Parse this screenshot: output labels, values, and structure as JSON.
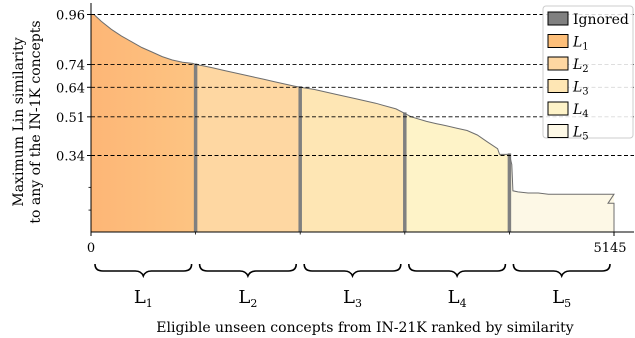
{
  "chart_data": {
    "type": "area",
    "ylabel_lines": [
      "Maximum Lin similarity",
      "to any of the IN-1K concepts"
    ],
    "xlabel": "Eligible unseen concepts from IN-21K ranked by similarity",
    "x_ticks": [
      0,
      5145
    ],
    "x_range": [
      0,
      5145
    ],
    "y_ticks": [
      0.96,
      0.74,
      0.64,
      0.51,
      0.34
    ],
    "y_range": [
      0,
      1.0
    ],
    "dashed_reference_lines": [
      0.96,
      0.74,
      0.64,
      0.51,
      0.34
    ],
    "curve": {
      "x": [
        0,
        30,
        100,
        200,
        300,
        400,
        500,
        600,
        700,
        800,
        900,
        1000,
        1029,
        1100,
        1200,
        1300,
        1400,
        1500,
        1600,
        1700,
        1800,
        1900,
        2000,
        2058,
        2200,
        2400,
        2600,
        2800,
        3000,
        3087,
        3150,
        3300,
        3400,
        3450,
        3500,
        3600,
        3700,
        3800,
        3900,
        4000,
        4020,
        4116,
        4140,
        4150,
        4200,
        4300,
        4400,
        4500,
        4600,
        5145
      ],
      "y": [
        0.96,
        0.96,
        0.93,
        0.895,
        0.865,
        0.84,
        0.815,
        0.795,
        0.775,
        0.76,
        0.75,
        0.745,
        0.74,
        0.735,
        0.725,
        0.715,
        0.705,
        0.695,
        0.685,
        0.675,
        0.665,
        0.655,
        0.645,
        0.64,
        0.63,
        0.61,
        0.59,
        0.57,
        0.545,
        0.525,
        0.51,
        0.49,
        0.48,
        0.475,
        0.47,
        0.46,
        0.45,
        0.43,
        0.4,
        0.37,
        0.345,
        0.345,
        0.3,
        0.185,
        0.18,
        0.175,
        0.175,
        0.17,
        0.17,
        0.17
      ]
    },
    "tail_drop": {
      "x": 4630,
      "y": 0.13
    },
    "split_points": [
      1029,
      2058,
      3087,
      4116
    ],
    "split_line_color": "#808080",
    "levels": [
      {
        "name": "L",
        "sub": "1",
        "color": "#fdbf7a"
      },
      {
        "name": "L",
        "sub": "2",
        "color": "#fed7a2"
      },
      {
        "name": "L",
        "sub": "3",
        "color": "#fee6b4"
      },
      {
        "name": "L",
        "sub": "4",
        "color": "#fef3c8"
      },
      {
        "name": "L",
        "sub": "5",
        "color": "#fdf8e6"
      }
    ],
    "legend": {
      "position": "top-right",
      "ignored_label": "Ignored",
      "ignored_color": "#808080"
    }
  }
}
